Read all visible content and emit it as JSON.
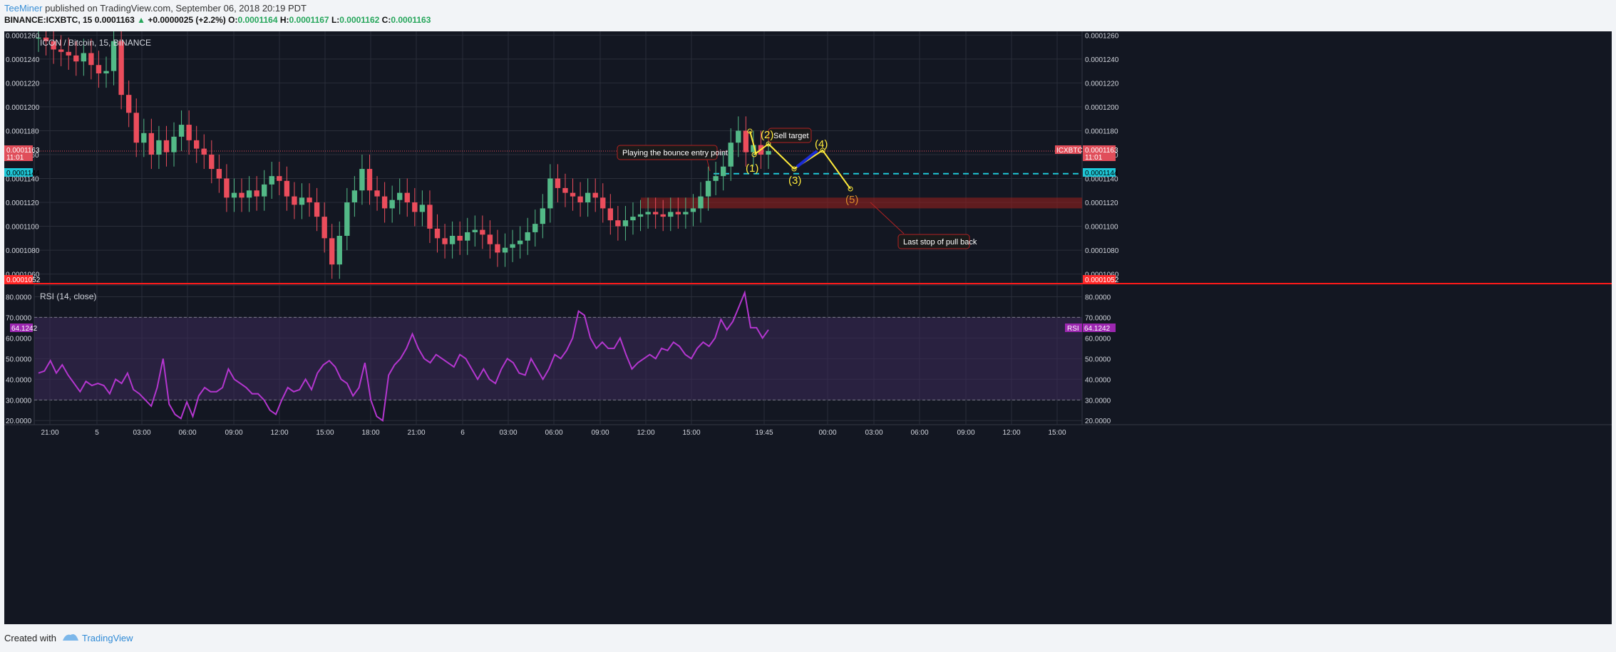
{
  "header": {
    "author": "TeeMiner",
    "published": "published on TradingView.com, September 06, 2018 20:19 PDT",
    "symbol": "BINANCE:ICXBTC, 15",
    "change_value": "0.0001163",
    "change_delta": "+0.0000025 (+2.2%)",
    "o_label": "O:",
    "o_value": "0.0001164",
    "h_label": "H:",
    "h_value": "0.0001167",
    "l_label": "L:",
    "l_value": "0.0001162",
    "c_label": "C:",
    "c_value": "0.0001163"
  },
  "chart_data": [
    {
      "type": "candlestick",
      "title": "ICON / Bitcoin, 15, BINANCE",
      "y_ticks": [
        "0.0001260",
        "0.0001240",
        "0.0001220",
        "0.0001200",
        "0.0001180",
        "0.0001160",
        "0.0001140",
        "0.0001120",
        "0.0001100",
        "0.0001080",
        "0.0001060"
      ],
      "ylim": [
        0.0001052,
        0.0001262
      ],
      "x_ticks": [
        "21:00",
        "5",
        "03:00",
        "06:00",
        "09:00",
        "12:00",
        "15:00",
        "18:00",
        "21:00",
        "6",
        "03:00",
        "06:00",
        "09:00",
        "12:00",
        "15:00",
        "19:45",
        "00:00",
        "03:00",
        "06:00",
        "09:00",
        "12:00",
        "15:00"
      ],
      "price_labels": {
        "current": "0.0001163",
        "countdown": "11:01",
        "symbol_tag": "ICXBTC",
        "level_cyan": "0.0001144",
        "level_red": "0.0001052"
      },
      "levels": {
        "current": 0.0001163,
        "cyan": 0.0001144,
        "red": 0.0001052,
        "zone": [
          0.0001115,
          0.0001124
        ]
      },
      "close_path": [
        0.0001258,
        0.0001255,
        0.0001248,
        0.0001246,
        0.0001243,
        0.0001238,
        0.0001245,
        0.0001235,
        0.0001228,
        0.000123,
        0.0001255,
        0.000121,
        0.0001195,
        0.000117,
        0.0001178,
        0.000116,
        0.0001172,
        0.0001162,
        0.0001175,
        0.0001185,
        0.0001172,
        0.0001165,
        0.000116,
        0.0001148,
        0.000114,
        0.0001124,
        0.0001128,
        0.0001124,
        0.000113,
        0.0001125,
        0.0001135,
        0.0001142,
        0.0001138,
        0.0001125,
        0.0001118,
        0.0001124,
        0.000112,
        0.0001108,
        0.000109,
        0.0001068,
        0.0001092,
        0.000112,
        0.000113,
        0.0001148,
        0.000113,
        0.0001125,
        0.0001115,
        0.0001122,
        0.0001128,
        0.000112,
        0.0001112,
        0.0001118,
        0.0001098,
        0.000109,
        0.0001085,
        0.0001092,
        0.0001088,
        0.0001095,
        0.0001097,
        0.0001093,
        0.0001085,
        0.0001078,
        0.0001082,
        0.0001085,
        0.0001088,
        0.0001095,
        0.0001102,
        0.0001115,
        0.000114,
        0.0001132,
        0.0001128,
        0.0001125,
        0.000112,
        0.0001128,
        0.0001124,
        0.0001115,
        0.0001105,
        0.00011,
        0.0001105,
        0.0001108,
        0.000111,
        0.0001112,
        0.000111,
        0.0001108,
        0.0001112,
        0.000111,
        0.0001112,
        0.0001115,
        0.0001125,
        0.0001138,
        0.0001142,
        0.000115,
        0.000117,
        0.000118,
        0.0001162,
        0.0001168,
        0.000116,
        0.0001163
      ],
      "annotations": [
        "Playing the bounce entry point",
        "Sell target",
        "Last stop of pull back",
        "(1)",
        "(2)",
        "(3)",
        "(4)",
        "(5)"
      ]
    },
    {
      "type": "line",
      "title": "RSI (14, close)",
      "y_ticks": [
        "80.0000",
        "70.0000",
        "60.0000",
        "50.0000",
        "40.0000",
        "30.0000",
        "20.0000"
      ],
      "ylim": [
        18,
        85
      ],
      "band": [
        30,
        70
      ],
      "current_label": "64.1242",
      "current_tag": "RSI",
      "values": [
        43,
        44,
        49,
        43,
        47,
        42,
        38,
        34,
        39,
        37,
        38,
        37,
        33,
        40,
        38,
        43,
        35,
        33,
        30,
        27,
        36,
        50,
        28,
        23,
        21,
        29,
        22,
        32,
        36,
        34,
        34,
        36,
        45,
        40,
        38,
        36,
        33,
        33,
        30,
        25,
        23,
        30,
        36,
        34,
        35,
        40,
        35,
        43,
        47,
        49,
        46,
        40,
        38,
        32,
        36,
        48,
        30,
        22,
        20,
        42,
        47,
        50,
        55,
        62,
        55,
        50,
        48,
        52,
        50,
        48,
        46,
        52,
        50,
        45,
        40,
        45,
        40,
        38,
        45,
        50,
        48,
        43,
        42,
        50,
        45,
        40,
        45,
        52,
        50,
        54,
        60,
        73,
        71,
        60,
        55,
        58,
        55,
        55,
        60,
        52,
        45,
        48,
        50,
        52,
        50,
        55,
        54,
        58,
        56,
        52,
        50,
        55,
        58,
        56,
        60,
        69,
        64,
        68,
        75,
        82,
        65,
        65,
        60,
        64
      ]
    }
  ],
  "footer": {
    "created_with": "Created with",
    "brand": "TradingView"
  }
}
